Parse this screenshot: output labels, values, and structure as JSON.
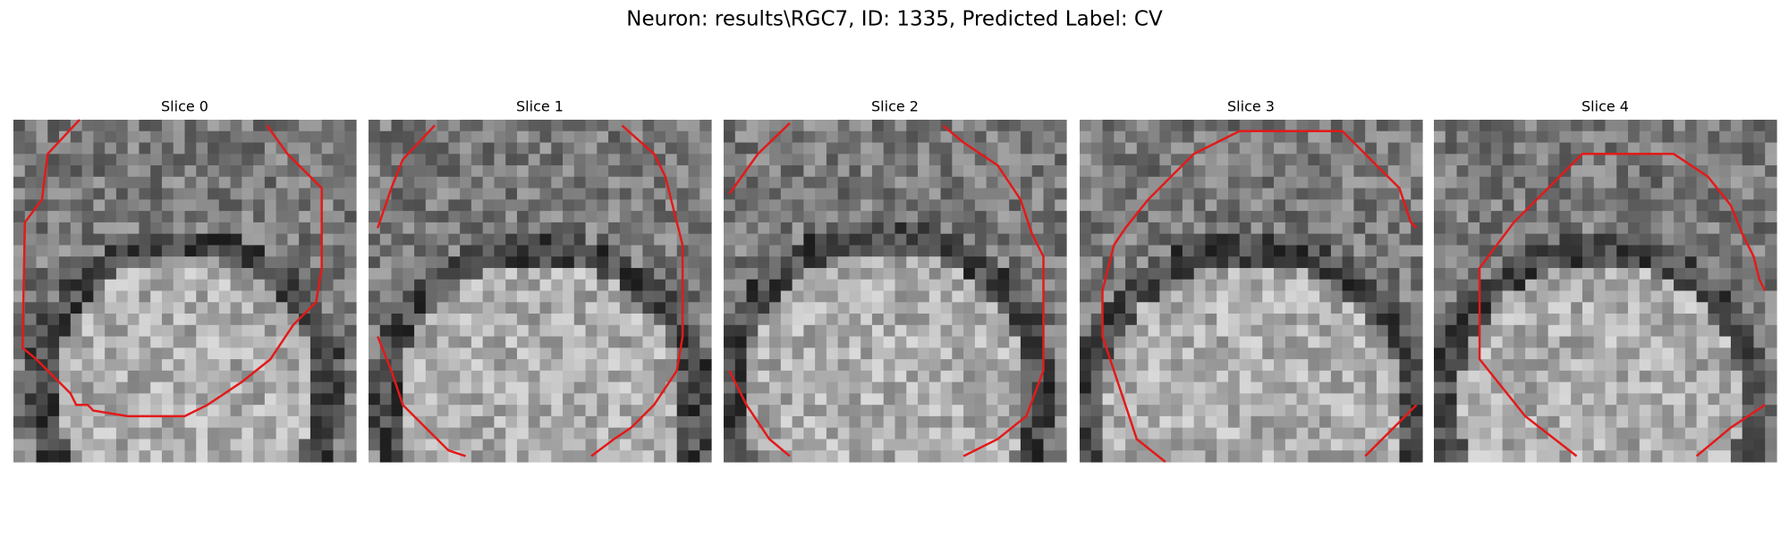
{
  "title": "Neuron: results\\RGC7, ID: 1335, Predicted Label: CV",
  "panels": [
    {
      "title": "Slice 0"
    },
    {
      "title": "Slice 1"
    },
    {
      "title": "Slice 2"
    },
    {
      "title": "Slice 3"
    },
    {
      "title": "Slice 4"
    }
  ]
}
